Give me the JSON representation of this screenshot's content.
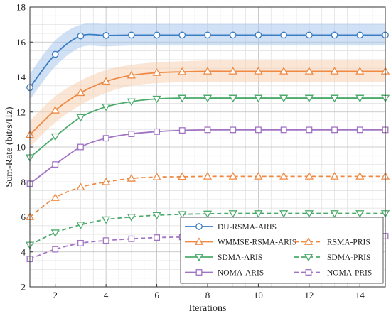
{
  "chart_data": {
    "type": "line",
    "xlabel": "Iterations",
    "ylabel": "Sum-Rate (bit/s/Hz)",
    "xlim": [
      1,
      15
    ],
    "ylim": [
      2,
      18
    ],
    "xticks": [
      2,
      4,
      6,
      8,
      10,
      12,
      14
    ],
    "yticks": [
      2,
      4,
      6,
      8,
      10,
      12,
      14,
      16,
      18
    ],
    "grid": true,
    "legend_position": "bottom-right",
    "x": [
      1,
      2,
      3,
      4,
      5,
      6,
      7,
      8,
      9,
      10,
      11,
      12,
      13,
      14,
      15
    ],
    "series": [
      {
        "name": "DU-RSMA-ARIS",
        "color": "#3a7dc3",
        "marker": "circle",
        "dashed": false,
        "values": [
          13.4,
          15.3,
          16.35,
          16.38,
          16.4,
          16.4,
          16.4,
          16.4,
          16.4,
          16.4,
          16.4,
          16.4,
          16.4,
          16.4,
          16.4
        ],
        "band": {
          "color": "#a9c8ee",
          "lower": [
            12.7,
            14.6,
            15.7,
            15.75,
            15.8,
            15.8,
            15.8,
            15.8,
            15.8,
            15.8,
            15.8,
            15.8,
            15.8,
            15.8,
            15.8
          ],
          "upper": [
            14.2,
            16.1,
            17.0,
            17.05,
            17.05,
            17.05,
            17.05,
            17.05,
            17.05,
            17.05,
            17.05,
            17.05,
            17.05,
            17.05,
            17.05
          ]
        }
      },
      {
        "name": "WMMSE-RSMA-ARIS",
        "color": "#ef8a44",
        "marker": "triangle-up",
        "dashed": false,
        "values": [
          10.7,
          12.1,
          13.1,
          13.75,
          14.1,
          14.25,
          14.3,
          14.33,
          14.33,
          14.33,
          14.33,
          14.33,
          14.33,
          14.33,
          14.33
        ],
        "band": {
          "color": "#f8d2b2",
          "lower": [
            10.0,
            11.4,
            12.4,
            13.1,
            13.5,
            13.65,
            13.7,
            13.7,
            13.7,
            13.7,
            13.7,
            13.7,
            13.7,
            13.7,
            13.7
          ],
          "upper": [
            11.5,
            12.9,
            13.8,
            14.4,
            14.7,
            14.85,
            14.9,
            14.95,
            14.95,
            14.95,
            14.95,
            14.95,
            14.95,
            14.95,
            14.95
          ]
        }
      },
      {
        "name": "SDMA-ARIS",
        "color": "#4bab6b",
        "marker": "triangle-down",
        "dashed": false,
        "values": [
          9.4,
          10.6,
          11.7,
          12.3,
          12.6,
          12.75,
          12.8,
          12.8,
          12.8,
          12.8,
          12.8,
          12.8,
          12.8,
          12.8,
          12.8
        ]
      },
      {
        "name": "NOMA-ARIS",
        "color": "#a173c4",
        "marker": "square",
        "dashed": false,
        "values": [
          7.9,
          9.0,
          10.0,
          10.5,
          10.75,
          10.88,
          10.95,
          10.98,
          10.98,
          10.98,
          10.98,
          10.98,
          10.98,
          10.98,
          10.98
        ]
      },
      {
        "name": "RSMA-PRIS",
        "color": "#ef8a44",
        "marker": "triangle-up",
        "dashed": true,
        "values": [
          6.0,
          7.1,
          7.7,
          8.0,
          8.2,
          8.28,
          8.3,
          8.32,
          8.32,
          8.32,
          8.32,
          8.32,
          8.32,
          8.32,
          8.32
        ]
      },
      {
        "name": "SDMA-PRIS",
        "color": "#4bab6b",
        "marker": "triangle-down",
        "dashed": true,
        "values": [
          4.4,
          5.1,
          5.55,
          5.85,
          6.0,
          6.1,
          6.15,
          6.18,
          6.2,
          6.2,
          6.2,
          6.2,
          6.2,
          6.2,
          6.2
        ]
      },
      {
        "name": "NOMA-PRIS",
        "color": "#a173c4",
        "marker": "square",
        "dashed": true,
        "values": [
          3.6,
          4.15,
          4.5,
          4.65,
          4.75,
          4.82,
          4.85,
          4.88,
          4.9,
          4.9,
          4.9,
          4.9,
          4.9,
          4.9,
          4.9
        ]
      }
    ]
  }
}
